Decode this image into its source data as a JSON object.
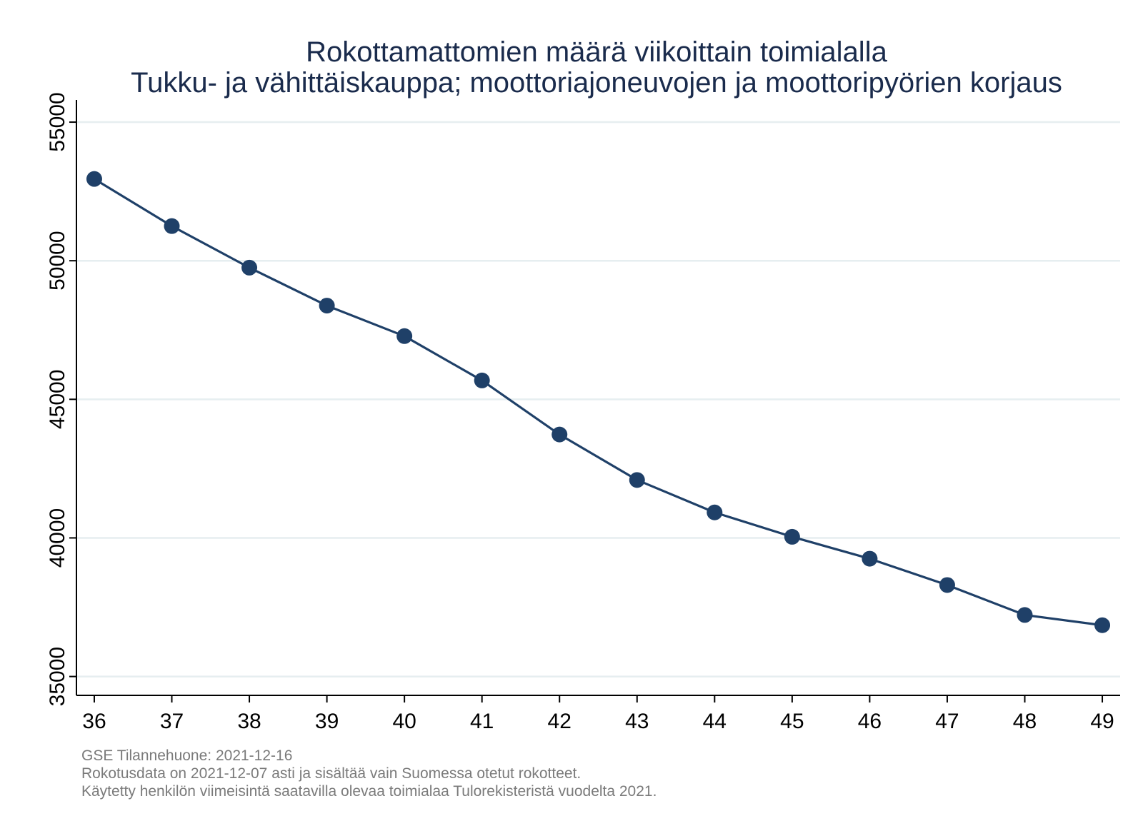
{
  "chart_data": {
    "type": "line",
    "title": "Rokottamattomien määrä viikoittain toimialalla",
    "subtitle": "Tukku- ja vähittäiskauppa; moottoriajoneuvojen ja moottoripyörien korjaus",
    "xlabel": "",
    "ylabel": "",
    "x": [
      36,
      37,
      38,
      39,
      40,
      41,
      42,
      43,
      44,
      45,
      46,
      47,
      48,
      49
    ],
    "series": [
      {
        "values": [
          52950,
          51250,
          49750,
          48380,
          47280,
          45680,
          43730,
          42090,
          40920,
          40040,
          39250,
          38300,
          37220,
          36850
        ],
        "color": "#1f4068"
      }
    ],
    "xlim": [
      35.77,
      49.23
    ],
    "ylim": [
      34320,
      55800
    ],
    "yticks": [
      35000,
      40000,
      45000,
      50000,
      55000
    ],
    "xticks": [
      36,
      37,
      38,
      39,
      40,
      41,
      42,
      43,
      44,
      45,
      46,
      47,
      48,
      49
    ],
    "grid": "horizontal",
    "gridColor": "#e6eef0",
    "legend": "none"
  },
  "notes": [
    "GSE Tilannehuone: 2021-12-16",
    "Rokotusdata on 2021-12-07 asti ja sisältää vain Suomessa otetut rokotteet.",
    "Käytetty henkilön viimeisintä saatavilla olevaa toimialaa Tulorekisteristä vuodelta 2021."
  ]
}
